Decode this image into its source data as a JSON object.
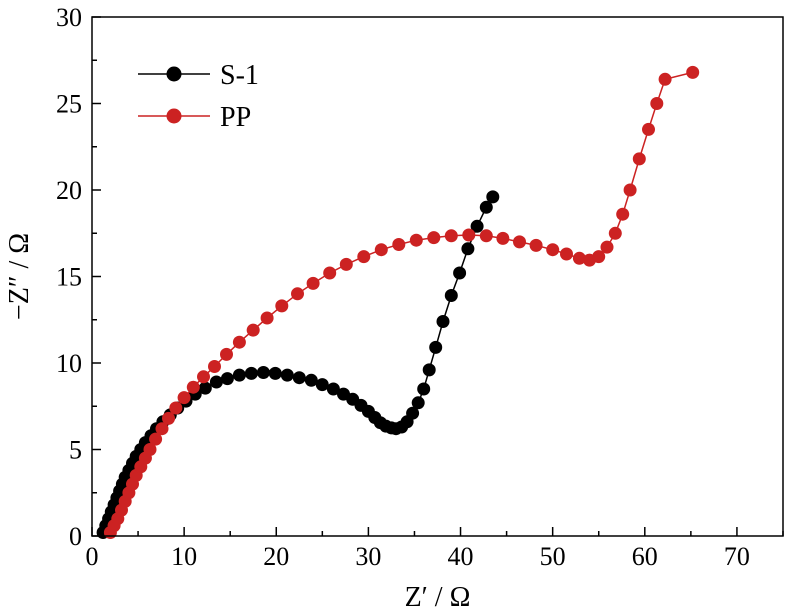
{
  "chart_data": {
    "type": "scatter",
    "xlabel": "Z′ / Ω",
    "ylabel": "−Z″ / Ω",
    "xlim": [
      0,
      75
    ],
    "ylim": [
      0,
      30
    ],
    "xticks": [
      "0",
      "10",
      "20",
      "30",
      "40",
      "50",
      "60",
      "70"
    ],
    "yticks": [
      "0",
      "5",
      "10",
      "15",
      "20",
      "25",
      "30"
    ],
    "legend_position": "top-left",
    "grid": false,
    "series": [
      {
        "name": "S-1",
        "color": "#000000",
        "points": [
          [
            1.2,
            0.2
          ],
          [
            1.5,
            0.6
          ],
          [
            1.8,
            1.0
          ],
          [
            2.1,
            1.4
          ],
          [
            2.4,
            1.8
          ],
          [
            2.7,
            2.2
          ],
          [
            3.0,
            2.6
          ],
          [
            3.3,
            3.0
          ],
          [
            3.6,
            3.4
          ],
          [
            4.0,
            3.8
          ],
          [
            4.4,
            4.2
          ],
          [
            4.8,
            4.6
          ],
          [
            5.3,
            5.0
          ],
          [
            5.8,
            5.4
          ],
          [
            6.4,
            5.8
          ],
          [
            7.0,
            6.2
          ],
          [
            7.7,
            6.6
          ],
          [
            8.5,
            7.0
          ],
          [
            9.3,
            7.4
          ],
          [
            10.2,
            7.8
          ],
          [
            11.2,
            8.2
          ],
          [
            12.3,
            8.55
          ],
          [
            13.5,
            8.9
          ],
          [
            14.7,
            9.1
          ],
          [
            16.0,
            9.3
          ],
          [
            17.3,
            9.4
          ],
          [
            18.6,
            9.45
          ],
          [
            19.9,
            9.4
          ],
          [
            21.2,
            9.3
          ],
          [
            22.5,
            9.15
          ],
          [
            23.8,
            9.0
          ],
          [
            25.0,
            8.75
          ],
          [
            26.2,
            8.5
          ],
          [
            27.3,
            8.2
          ],
          [
            28.3,
            7.9
          ],
          [
            29.2,
            7.55
          ],
          [
            30.0,
            7.2
          ],
          [
            30.7,
            6.85
          ],
          [
            31.3,
            6.55
          ],
          [
            31.9,
            6.35
          ],
          [
            32.5,
            6.25
          ],
          [
            33.0,
            6.2
          ],
          [
            33.6,
            6.3
          ],
          [
            34.2,
            6.6
          ],
          [
            34.8,
            7.1
          ],
          [
            35.4,
            7.7
          ],
          [
            36.0,
            8.5
          ],
          [
            36.6,
            9.6
          ],
          [
            37.3,
            10.9
          ],
          [
            38.1,
            12.4
          ],
          [
            39.0,
            13.9
          ],
          [
            39.9,
            15.2
          ],
          [
            40.8,
            16.6
          ],
          [
            41.8,
            17.9
          ],
          [
            42.8,
            19.0
          ],
          [
            43.5,
            19.6
          ]
        ]
      },
      {
        "name": "PP",
        "color": "#cc2222",
        "points": [
          [
            2.0,
            0.2
          ],
          [
            2.4,
            0.6
          ],
          [
            2.8,
            1.0
          ],
          [
            3.2,
            1.5
          ],
          [
            3.6,
            2.0
          ],
          [
            4.0,
            2.5
          ],
          [
            4.4,
            3.0
          ],
          [
            4.8,
            3.5
          ],
          [
            5.3,
            4.0
          ],
          [
            5.8,
            4.5
          ],
          [
            6.3,
            5.0
          ],
          [
            6.9,
            5.6
          ],
          [
            7.6,
            6.2
          ],
          [
            8.3,
            6.8
          ],
          [
            9.1,
            7.4
          ],
          [
            10.0,
            8.0
          ],
          [
            11.0,
            8.6
          ],
          [
            12.1,
            9.2
          ],
          [
            13.3,
            9.8
          ],
          [
            14.6,
            10.5
          ],
          [
            16.0,
            11.2
          ],
          [
            17.5,
            11.9
          ],
          [
            19.0,
            12.6
          ],
          [
            20.6,
            13.3
          ],
          [
            22.3,
            14.0
          ],
          [
            24.0,
            14.6
          ],
          [
            25.8,
            15.2
          ],
          [
            27.6,
            15.7
          ],
          [
            29.5,
            16.15
          ],
          [
            31.4,
            16.55
          ],
          [
            33.3,
            16.85
          ],
          [
            35.2,
            17.1
          ],
          [
            37.1,
            17.25
          ],
          [
            39.0,
            17.35
          ],
          [
            40.9,
            17.4
          ],
          [
            42.8,
            17.35
          ],
          [
            44.6,
            17.2
          ],
          [
            46.4,
            17.0
          ],
          [
            48.2,
            16.8
          ],
          [
            50.0,
            16.55
          ],
          [
            51.5,
            16.3
          ],
          [
            52.9,
            16.05
          ],
          [
            54.0,
            15.95
          ],
          [
            55.0,
            16.15
          ],
          [
            55.9,
            16.7
          ],
          [
            56.8,
            17.5
          ],
          [
            57.6,
            18.6
          ],
          [
            58.4,
            20.0
          ],
          [
            59.4,
            21.8
          ],
          [
            60.4,
            23.5
          ],
          [
            61.3,
            25.0
          ],
          [
            62.2,
            26.4
          ],
          [
            65.2,
            26.8
          ]
        ]
      }
    ]
  }
}
